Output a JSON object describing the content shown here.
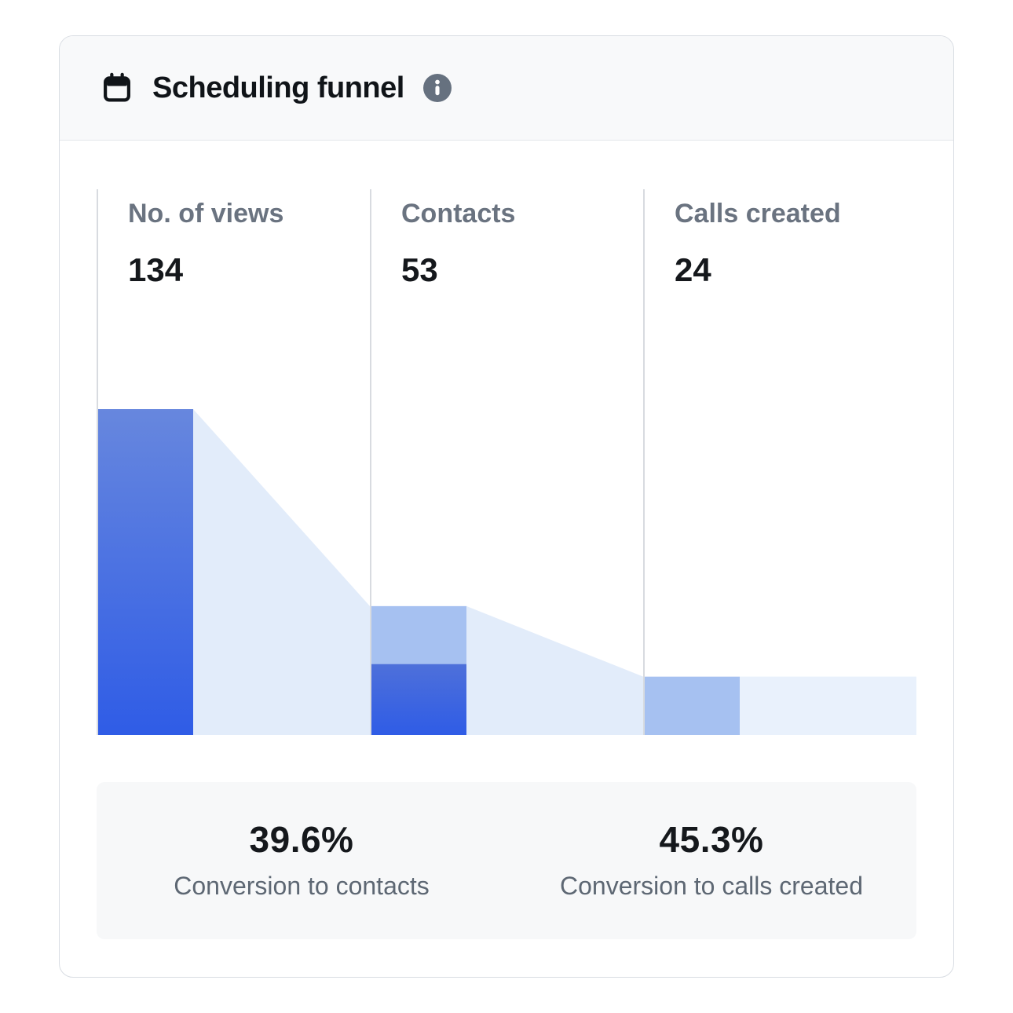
{
  "card": {
    "title": "Scheduling funnel"
  },
  "chart_data": {
    "type": "funnel",
    "title": "Scheduling funnel",
    "stages": [
      {
        "label": "No. of views",
        "value": 134
      },
      {
        "label": "Contacts",
        "value": 53
      },
      {
        "label": "Calls created",
        "value": 24
      }
    ],
    "conversions": [
      {
        "value": "39.6%",
        "label": "Conversion to contacts"
      },
      {
        "value": "45.3%",
        "label": "Conversion to calls created"
      }
    ],
    "colors": {
      "bar_primary_top": "#6787de",
      "bar_primary_bottom": "#2f5ce6",
      "bar_secondary_top": "#4e70da",
      "bar_light": "#a6c1f1",
      "funnel_area": "#e2ecfa",
      "funnel_tail": "#e9f1fc"
    }
  }
}
